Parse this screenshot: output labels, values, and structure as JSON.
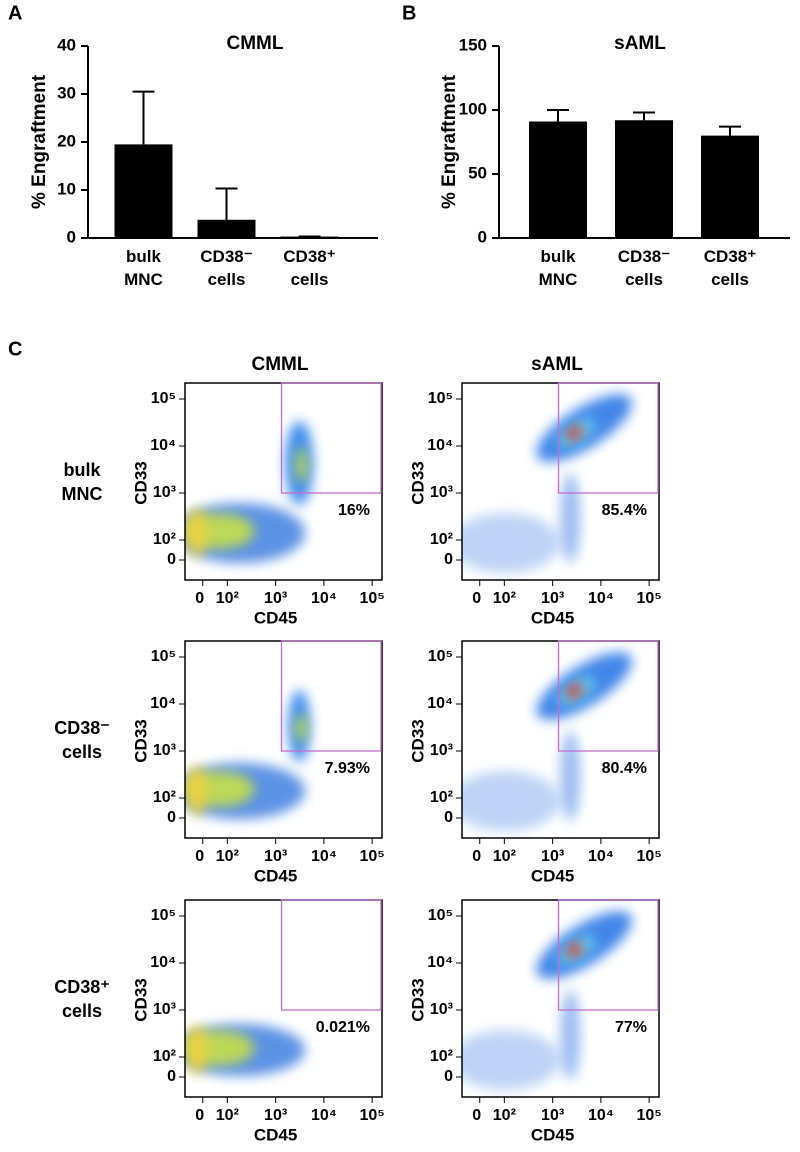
{
  "panel_labels": [
    "A",
    "B",
    "C"
  ],
  "chart_data": [
    {
      "type": "bar",
      "title": "CMML",
      "y_label": "% Engraftment",
      "categories": [
        "bulk MNC",
        "CD38⁻ cells",
        "CD38⁺ cells"
      ],
      "values": [
        19.5,
        3.8,
        0.3
      ],
      "errors": [
        11,
        6.5,
        0
      ],
      "color": "#000000",
      "ylim": [
        0,
        40
      ],
      "yticks": [
        0,
        10,
        20,
        30,
        40
      ]
    },
    {
      "type": "bar",
      "title": "sAML",
      "y_label": "% Engraftment",
      "categories": [
        "bulk MNC",
        "CD38⁻ cells",
        "CD38⁺ cells"
      ],
      "values": [
        91,
        92,
        80
      ],
      "errors": [
        9,
        6,
        7
      ],
      "color": "#000000",
      "ylim": [
        0,
        150
      ],
      "yticks": [
        0,
        50,
        100,
        150
      ]
    }
  ],
  "flow": {
    "columns": [
      "CMML",
      "sAML"
    ],
    "rows": [
      "bulk MNC",
      "CD38⁻ cells",
      "CD38⁺ cells"
    ],
    "x_label": "CD45",
    "y_label": "CD33",
    "xticks": [
      0,
      {
        "value": 100,
        "label": "10²"
      },
      {
        "value": 1000,
        "label": "10³"
      },
      {
        "value": 10000,
        "label": "10⁴"
      },
      {
        "value": 100000,
        "label": "10⁵"
      }
    ],
    "yticks": [
      0,
      {
        "value": 100,
        "label": "10²"
      },
      {
        "value": 1000,
        "label": "10³"
      },
      {
        "value": 10000,
        "label": "10⁴"
      },
      {
        "value": 100000,
        "label": "10⁵"
      }
    ],
    "gates": [
      [
        "16%",
        "85.4%"
      ],
      [
        "7.93%",
        "80.4%"
      ],
      [
        "0.021%",
        "77%"
      ]
    ]
  }
}
